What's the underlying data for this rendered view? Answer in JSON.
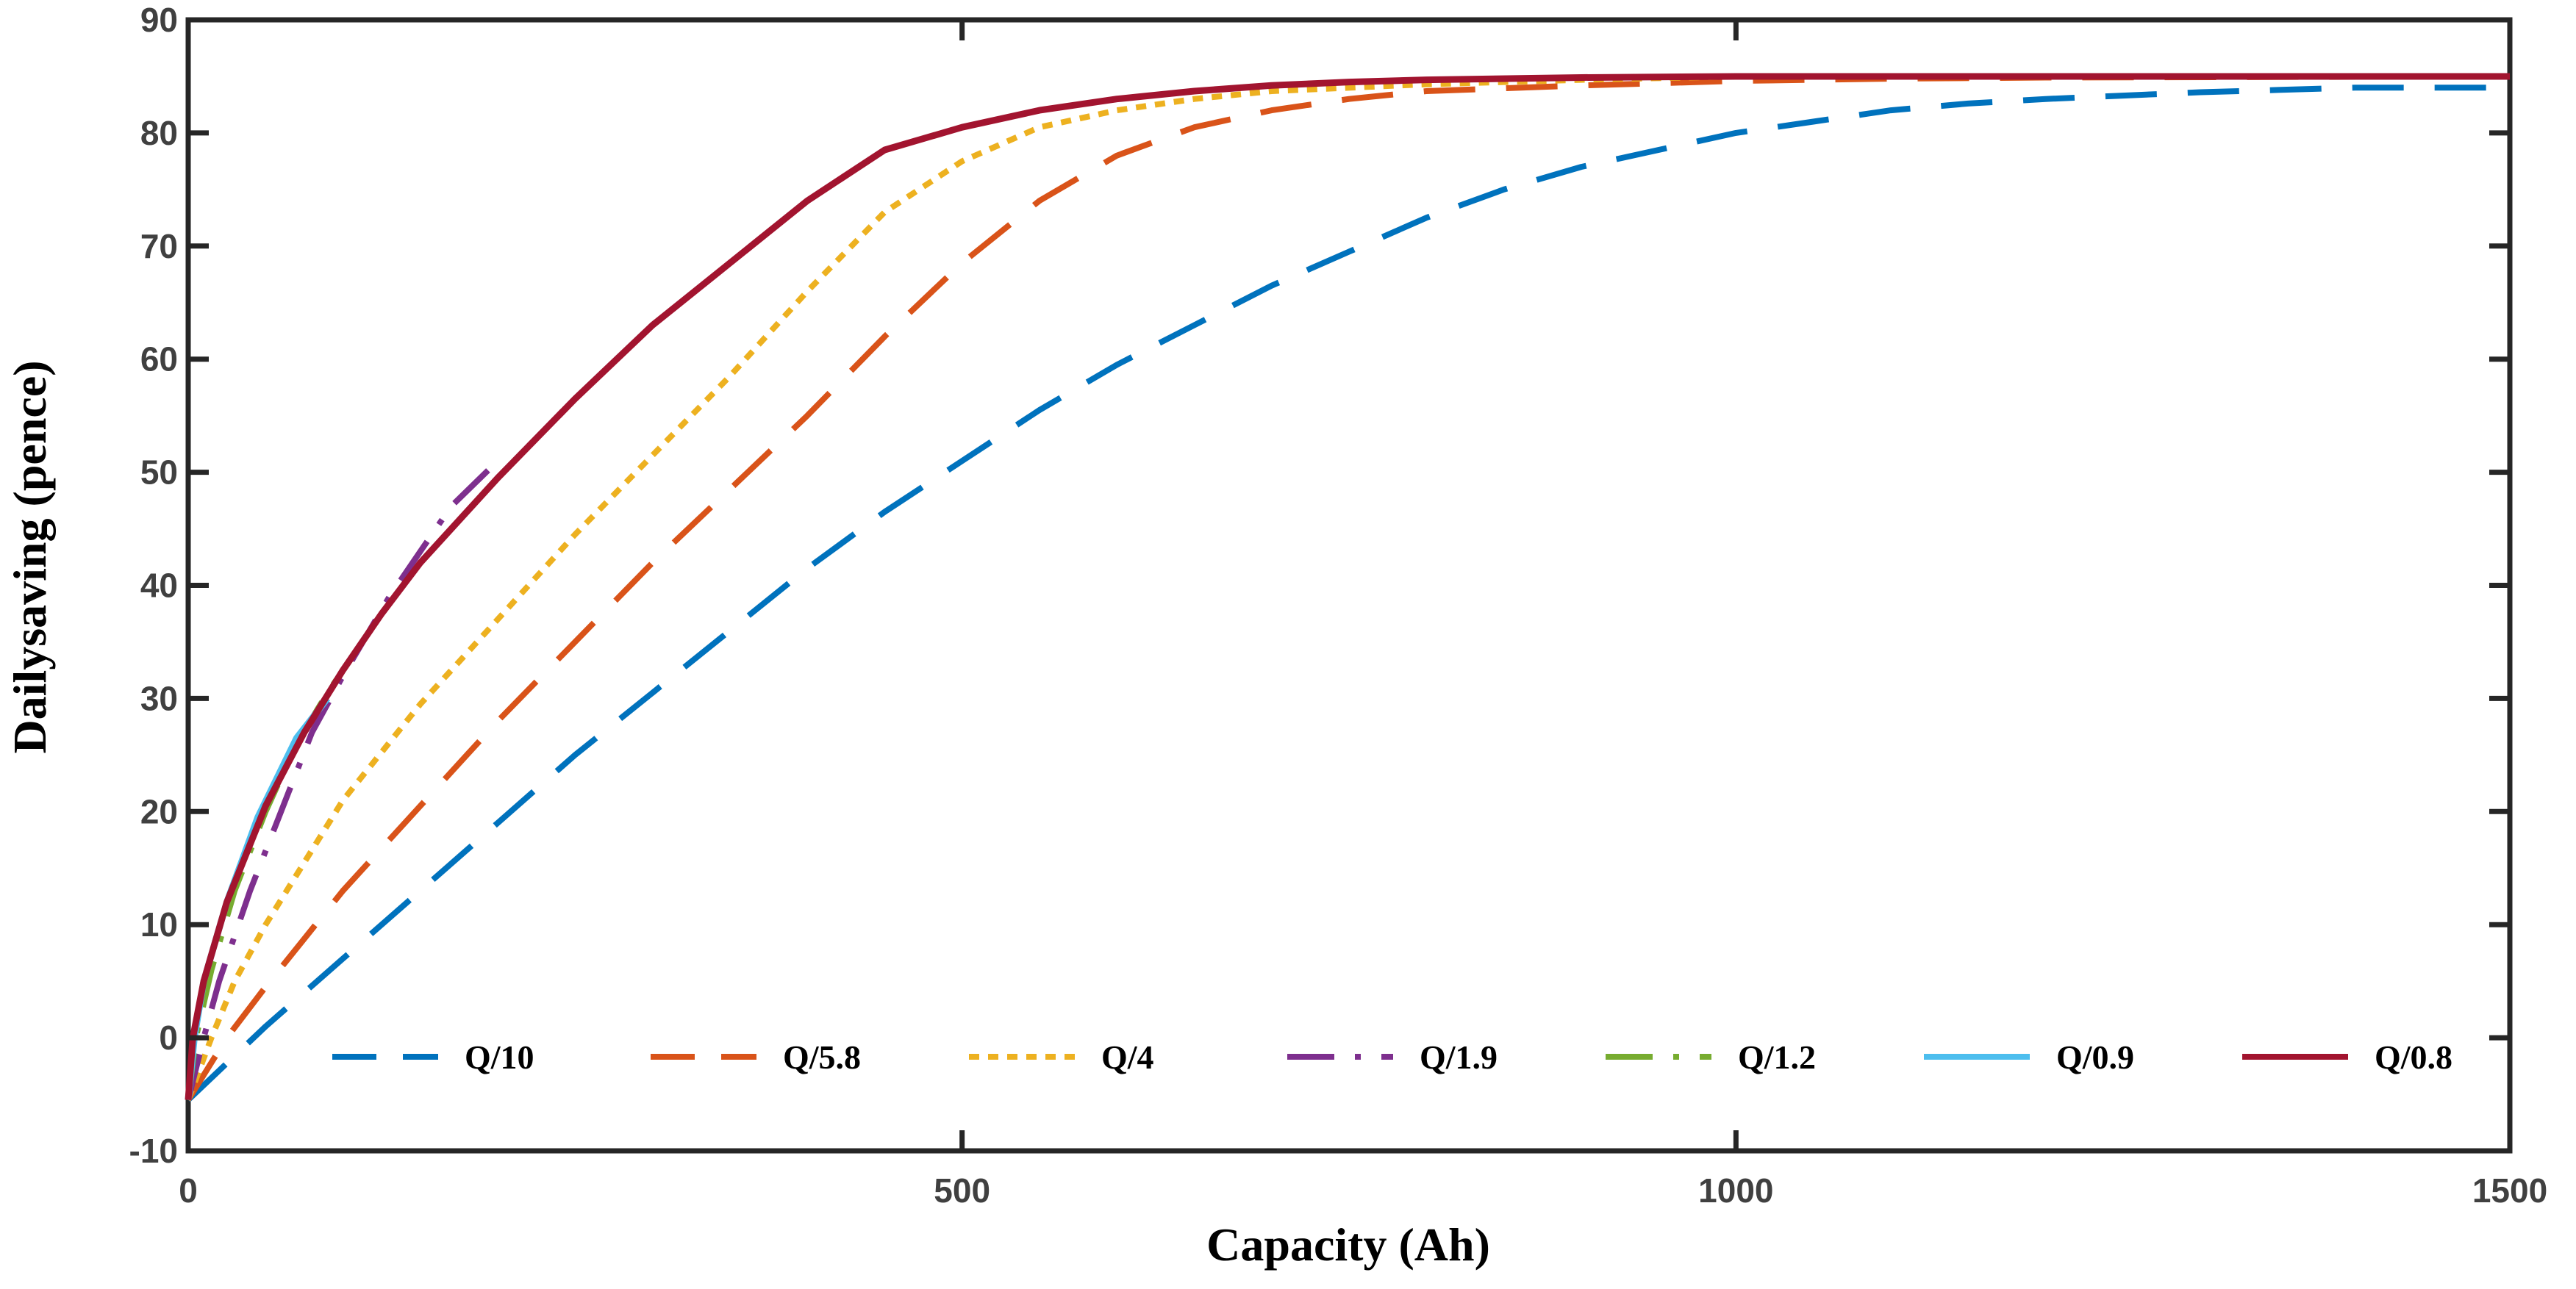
{
  "chart_data": {
    "type": "line",
    "title": "",
    "xlabel": "Capacity (Ah)",
    "ylabel": "Dailysaving (pence)",
    "xlim": [
      0,
      1500
    ],
    "ylim": [
      -10,
      90
    ],
    "xticks": [
      0,
      500,
      1000,
      1500
    ],
    "xtick_labels": [
      "0",
      "500",
      "1000",
      "1500"
    ],
    "yticks": [
      -10,
      0,
      10,
      20,
      30,
      40,
      50,
      60,
      70,
      80,
      90
    ],
    "ytick_labels": [
      "-10",
      "0",
      "10",
      "20",
      "30",
      "40",
      "50",
      "60",
      "70",
      "80",
      "90"
    ],
    "grid": false,
    "legend_position": "bottom",
    "series": [
      {
        "name": "Q/10",
        "color": "#0072BD",
        "style": "dashed",
        "points": [
          [
            0,
            -5.5
          ],
          [
            50,
            1
          ],
          [
            100,
            7
          ],
          [
            150,
            13
          ],
          [
            200,
            19
          ],
          [
            250,
            25
          ],
          [
            300,
            30.5
          ],
          [
            350,
            36
          ],
          [
            400,
            41.5
          ],
          [
            450,
            46.5
          ],
          [
            500,
            51
          ],
          [
            550,
            55.5
          ],
          [
            600,
            59.5
          ],
          [
            650,
            63
          ],
          [
            700,
            66.5
          ],
          [
            750,
            69.5
          ],
          [
            800,
            72.5
          ],
          [
            850,
            75
          ],
          [
            900,
            77
          ],
          [
            950,
            78.5
          ],
          [
            1000,
            80
          ],
          [
            1050,
            81
          ],
          [
            1100,
            82
          ],
          [
            1150,
            82.6
          ],
          [
            1200,
            83
          ],
          [
            1250,
            83.3
          ],
          [
            1300,
            83.6
          ],
          [
            1350,
            83.8
          ],
          [
            1400,
            84
          ],
          [
            1450,
            84
          ],
          [
            1500,
            84
          ]
        ]
      },
      {
        "name": "Q/5.8",
        "color": "#D95319",
        "style": "dashed",
        "points": [
          [
            0,
            -5.5
          ],
          [
            25,
            0
          ],
          [
            50,
            4.5
          ],
          [
            100,
            13
          ],
          [
            150,
            20.5
          ],
          [
            200,
            28
          ],
          [
            250,
            35
          ],
          [
            300,
            42
          ],
          [
            350,
            48.5
          ],
          [
            400,
            55
          ],
          [
            450,
            62
          ],
          [
            500,
            68.5
          ],
          [
            550,
            74
          ],
          [
            600,
            78
          ],
          [
            650,
            80.5
          ],
          [
            700,
            82
          ],
          [
            750,
            83
          ],
          [
            800,
            83.7
          ],
          [
            900,
            84.2
          ],
          [
            1000,
            84.6
          ],
          [
            1100,
            84.8
          ],
          [
            1200,
            84.9
          ],
          [
            1500,
            85
          ]
        ]
      },
      {
        "name": "Q/4",
        "color": "#EDB120",
        "style": "dotted",
        "points": [
          [
            0,
            -5.5
          ],
          [
            15,
            0
          ],
          [
            30,
            5
          ],
          [
            50,
            10
          ],
          [
            100,
            21
          ],
          [
            150,
            29.5
          ],
          [
            200,
            37
          ],
          [
            250,
            44.5
          ],
          [
            300,
            51.5
          ],
          [
            350,
            58.5
          ],
          [
            400,
            66
          ],
          [
            450,
            73
          ],
          [
            500,
            77.5
          ],
          [
            550,
            80.5
          ],
          [
            600,
            82
          ],
          [
            650,
            83
          ],
          [
            700,
            83.7
          ],
          [
            800,
            84.3
          ],
          [
            900,
            84.7
          ],
          [
            1000,
            85
          ],
          [
            1500,
            85
          ]
        ]
      },
      {
        "name": "Q/1.9",
        "color": "#7E2F8E",
        "style": "dashdot",
        "points": [
          [
            0,
            -5.5
          ],
          [
            10,
            0
          ],
          [
            20,
            5
          ],
          [
            40,
            13
          ],
          [
            60,
            20
          ],
          [
            80,
            27
          ],
          [
            100,
            32
          ],
          [
            130,
            39
          ],
          [
            150,
            43
          ],
          [
            170,
            47
          ],
          [
            200,
            51
          ]
        ]
      },
      {
        "name": "Q/1.2",
        "color": "#77AC30",
        "style": "dashdot",
        "points": [
          [
            0,
            -5.5
          ],
          [
            5,
            0
          ],
          [
            15,
            6
          ],
          [
            30,
            13
          ],
          [
            50,
            20
          ],
          [
            70,
            26
          ],
          [
            90,
            30.5
          ],
          [
            110,
            34.5
          ]
        ]
      },
      {
        "name": "Q/0.9",
        "color": "#4DBEEE",
        "style": "solid",
        "points": [
          [
            0,
            -5.5
          ],
          [
            4,
            0
          ],
          [
            10,
            5
          ],
          [
            25,
            12
          ],
          [
            45,
            19.5
          ],
          [
            70,
            26.5
          ],
          [
            90,
            30
          ]
        ]
      },
      {
        "name": "Q/0.8",
        "color": "#A2142F",
        "style": "solid",
        "points": [
          [
            0,
            -5.5
          ],
          [
            3,
            0
          ],
          [
            10,
            5
          ],
          [
            25,
            12
          ],
          [
            50,
            20.5
          ],
          [
            75,
            27
          ],
          [
            100,
            32.5
          ],
          [
            125,
            37.5
          ],
          [
            150,
            42
          ],
          [
            200,
            49.5
          ],
          [
            250,
            56.5
          ],
          [
            300,
            63
          ],
          [
            350,
            68.5
          ],
          [
            400,
            74
          ],
          [
            450,
            78.5
          ],
          [
            500,
            80.5
          ],
          [
            550,
            82
          ],
          [
            600,
            83
          ],
          [
            650,
            83.7
          ],
          [
            700,
            84.2
          ],
          [
            750,
            84.5
          ],
          [
            800,
            84.7
          ],
          [
            900,
            84.9
          ],
          [
            1000,
            85
          ],
          [
            1500,
            85
          ]
        ]
      }
    ]
  }
}
